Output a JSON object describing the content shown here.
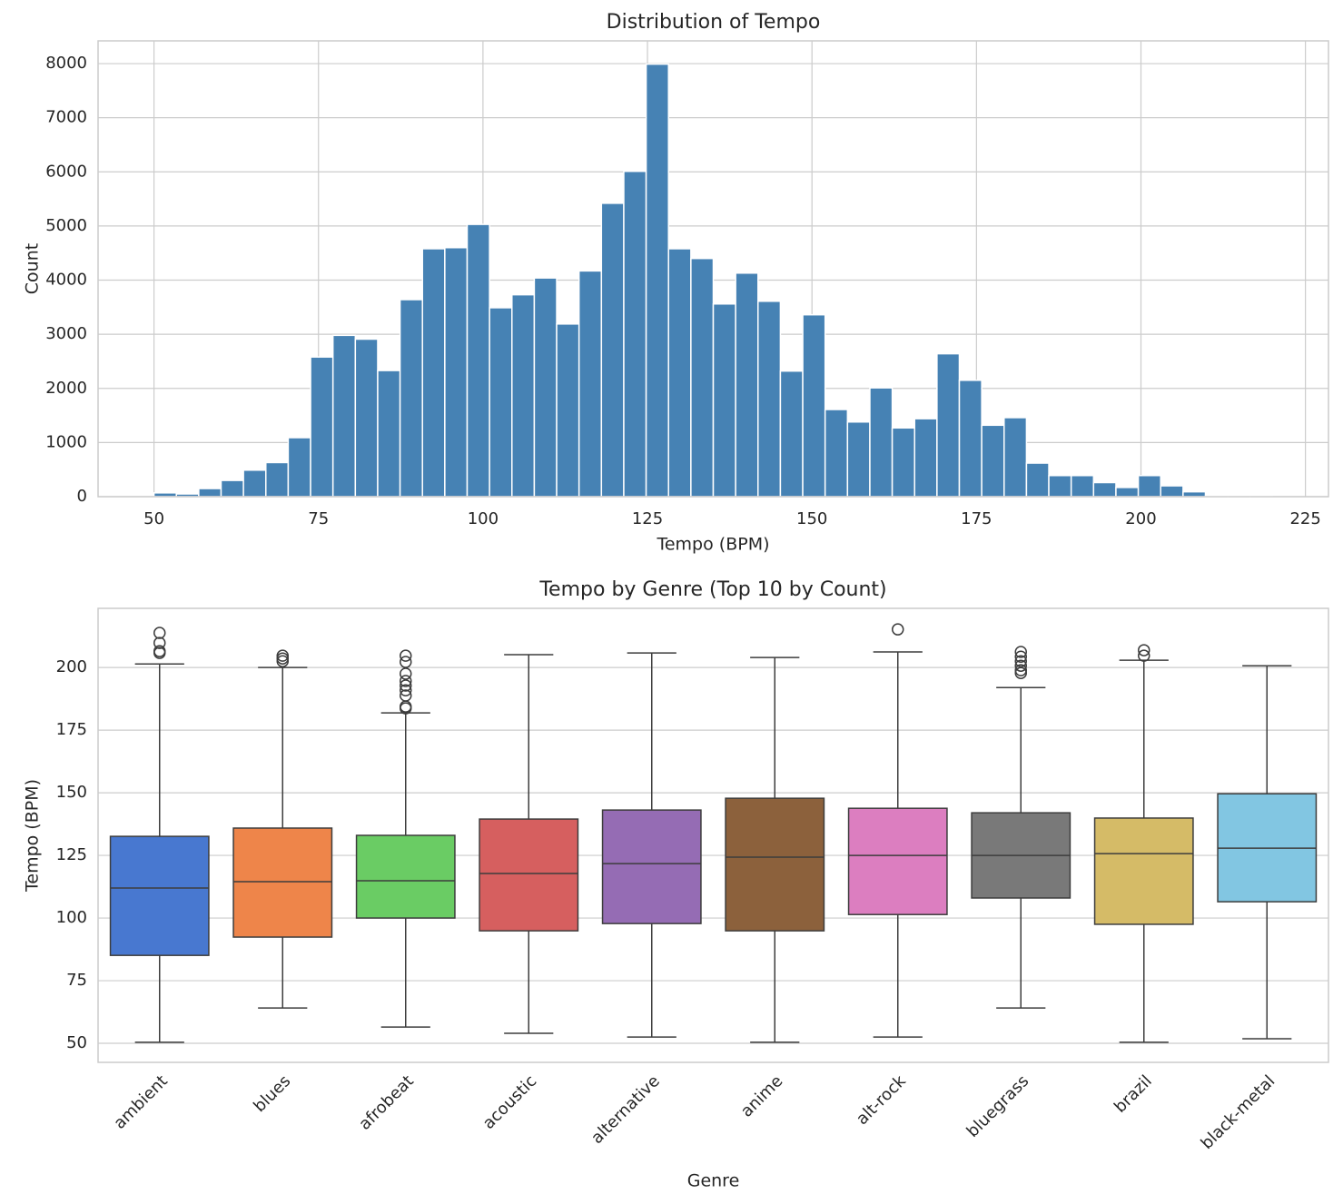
{
  "chart_data": [
    {
      "type": "histogram",
      "title": "Distribution of Tempo",
      "xlabel": "Tempo (BPM)",
      "ylabel": "Count",
      "color": "#4682b4",
      "bins": [
        50,
        53.4,
        56.8,
        60.2,
        63.6,
        67,
        70.4,
        73.8,
        77.2,
        80.6,
        84,
        87.4,
        90.8,
        94.2,
        97.6,
        101,
        104.4,
        107.8,
        111.2,
        114.6,
        118,
        121.4,
        124.8,
        128.2,
        131.6,
        135,
        138.4,
        141.8,
        145.2,
        148.6,
        152,
        155.4,
        158.8,
        162.2,
        165.6,
        169,
        172.4,
        175.8,
        179.2,
        182.6,
        186,
        189.4,
        192.8,
        196.2,
        199.6,
        203,
        206.4,
        209.8,
        213.2,
        216.6,
        220
      ],
      "counts": [
        70,
        50,
        150,
        300,
        490,
        630,
        1090,
        2580,
        2980,
        2910,
        2330,
        3640,
        4580,
        4600,
        5030,
        3490,
        3730,
        4040,
        3190,
        4170,
        5420,
        6010,
        7990,
        4580,
        4400,
        3560,
        4130,
        3610,
        2320,
        3360,
        1610,
        1380,
        2010,
        1270,
        1440,
        2640,
        2150,
        1320,
        1460,
        620,
        390,
        390,
        260,
        170,
        390,
        200,
        90,
        10,
        5,
        3
      ],
      "xlim": [
        41.5,
        228.5
      ],
      "xticks": [
        50,
        75,
        100,
        125,
        150,
        175,
        200,
        225
      ],
      "ylim": [
        0,
        8420
      ],
      "yticks": [
        0,
        1000,
        2000,
        3000,
        4000,
        5000,
        6000,
        7000,
        8000
      ],
      "grid": true
    },
    {
      "type": "box",
      "title": "Tempo by Genre (Top 10 by Count)",
      "xlabel": "Genre",
      "ylabel": "Tempo (BPM)",
      "categories": [
        "ambient",
        "blues",
        "afrobeat",
        "acoustic",
        "alternative",
        "anime",
        "alt-rock",
        "bluegrass",
        "brazil",
        "black-metal"
      ],
      "colors": [
        "#4878d0",
        "#ee854a",
        "#6acc64",
        "#d65f5f",
        "#956cb4",
        "#8c613c",
        "#dc7ec0",
        "#797979",
        "#d5bb67",
        "#82c6e2"
      ],
      "boxes": [
        {
          "whislo": 50.4,
          "q1": 85.1,
          "median": 112,
          "q3": 132.6,
          "whishi": 201.4,
          "fliers": [
            213.8,
            209.8,
            206.5,
            205.8
          ]
        },
        {
          "whislo": 64.1,
          "q1": 92.4,
          "median": 114.5,
          "q3": 135.9,
          "whishi": 200,
          "fliers": [
            204.7,
            203.6,
            202.5
          ]
        },
        {
          "whislo": 56.5,
          "q1": 100,
          "median": 114.9,
          "q3": 133,
          "whishi": 181.9,
          "fliers": [
            204.7,
            202.2,
            197.5,
            194.6,
            192.8,
            190.9,
            188.8,
            184.4,
            183.7
          ]
        },
        {
          "whislo": 54,
          "q1": 94.9,
          "median": 117.8,
          "q3": 139.5,
          "whishi": 205.1,
          "fliers": []
        },
        {
          "whislo": 52.5,
          "q1": 97.8,
          "median": 121.7,
          "q3": 143.1,
          "whishi": 205.8,
          "fliers": []
        },
        {
          "whislo": 50.4,
          "q1": 94.9,
          "median": 124.3,
          "q3": 147.8,
          "whishi": 204,
          "fliers": []
        },
        {
          "whislo": 52.5,
          "q1": 101.4,
          "median": 125,
          "q3": 143.8,
          "whishi": 206.2,
          "fliers": [
            215.2
          ]
        },
        {
          "whislo": 64.1,
          "q1": 108,
          "median": 125,
          "q3": 142,
          "whishi": 192,
          "fliers": [
            206.2,
            204.3,
            202.5,
            200.7,
            198.9,
            197.8
          ]
        },
        {
          "whislo": 50.4,
          "q1": 97.5,
          "median": 125.7,
          "q3": 139.9,
          "whishi": 202.9,
          "fliers": [
            206.9,
            204.7
          ]
        },
        {
          "whislo": 51.8,
          "q1": 106.5,
          "median": 127.9,
          "q3": 149.6,
          "whishi": 200.7,
          "fliers": []
        }
      ],
      "ylim": [
        42.4,
        223.6
      ],
      "yticks": [
        50,
        75,
        100,
        125,
        150,
        175,
        200
      ],
      "grid": true
    }
  ]
}
